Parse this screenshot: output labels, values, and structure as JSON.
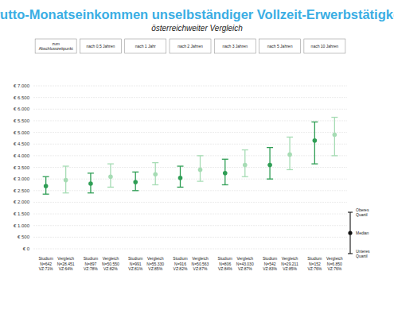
{
  "chart_data": {
    "type": "dot_range",
    "title": "Brutto-Monatseinkommen unselbständiger Vollzeit-Erwerbstätigkeit",
    "subtitle": "österreichweiter Vergleich",
    "categories": [
      "zum Abschlusszeitpunkt",
      "nach 0,5 Jahren",
      "nach 1 Jahr",
      "nach 2 Jahren",
      "nach 3 Jahren",
      "nach 5 Jahren",
      "nach 10 Jahren"
    ],
    "series": [
      {
        "name": "Studium",
        "color": "#2f9e55",
        "values": [
          2700,
          2800,
          2870,
          3050,
          3250,
          3600,
          4650
        ],
        "lower": [
          2350,
          2400,
          2500,
          2650,
          2750,
          3000,
          3650
        ],
        "upper": [
          3100,
          3250,
          3300,
          3550,
          3850,
          4350,
          5450
        ],
        "n_labels": [
          "N=642",
          "N=897",
          "N=991",
          "N=916",
          "N=806",
          "N=542",
          "N=152"
        ],
        "vz_labels": [
          "VZ:71%",
          "VZ:78%",
          "VZ:81%",
          "VZ:82%",
          "VZ:84%",
          "VZ:83%",
          "VZ:76%"
        ]
      },
      {
        "name": "Vergleich",
        "color": "#a6dcb4",
        "values": [
          2950,
          3100,
          3200,
          3400,
          3600,
          4050,
          4900
        ],
        "lower": [
          2400,
          2650,
          2750,
          2900,
          3100,
          3400,
          4000
        ],
        "upper": [
          3550,
          3650,
          3700,
          4000,
          4250,
          4800,
          5650
        ],
        "n_labels": [
          "N=28.451",
          "N=50.550",
          "N=55.330",
          "N=50.563",
          "N=43.030",
          "N=29.211",
          "N=6.850"
        ],
        "vz_labels": [
          "VZ:64%",
          "VZ:82%",
          "VZ:85%",
          "VZ:87%",
          "VZ:87%",
          "VZ:85%",
          "VZ:76%"
        ]
      }
    ],
    "ylim": [
      0,
      7000
    ],
    "yticks": [
      {
        "value": 0,
        "label": "€ 0"
      },
      {
        "value": 500,
        "label": "€ 500"
      },
      {
        "value": 1000,
        "label": "€ 1.000"
      },
      {
        "value": 1500,
        "label": "€ 1.500"
      },
      {
        "value": 2000,
        "label": "€ 2.000"
      },
      {
        "value": 2500,
        "label": "€ 2.500"
      },
      {
        "value": 3000,
        "label": "€ 3.000"
      },
      {
        "value": 3500,
        "label": "€ 3.500"
      },
      {
        "value": 4000,
        "label": "€ 4.000"
      },
      {
        "value": 4500,
        "label": "€ 4.500"
      },
      {
        "value": 5000,
        "label": "€ 5.000"
      },
      {
        "value": 5500,
        "label": "€ 5.500"
      },
      {
        "value": 6000,
        "label": "€ 6.000"
      },
      {
        "value": 6500,
        "label": "€ 6.500"
      },
      {
        "value": 7000,
        "label": "€ 7.000"
      }
    ],
    "grid": true,
    "legend": "right",
    "range_legend": {
      "upper": "Oberes Quartil",
      "median": "Median",
      "lower": "Unteres Quartil"
    }
  }
}
